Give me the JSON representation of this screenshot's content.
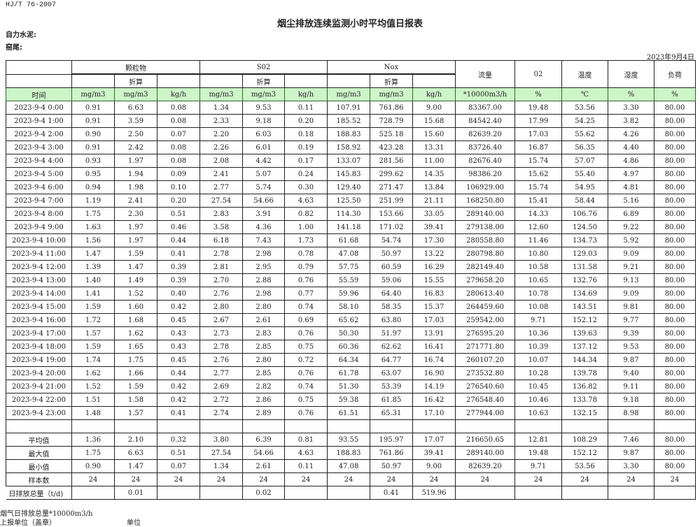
{
  "standard": "HJ/T  76-2007",
  "title": "烟尘排放连续监测小时平均值日报表",
  "company_label": "自力水泥:",
  "kiln_label": "窑尾:",
  "report_date": "2023年9月4日",
  "header": {
    "groups": [
      "颗粒物",
      "S02",
      "Nox"
    ],
    "converted_label": "折算",
    "single_columns": [
      "流量",
      "02",
      "温度",
      "湿度",
      "负荷"
    ],
    "units": [
      "时间",
      "mg/m3",
      "mg/m3",
      "kg/h",
      "mg/m3",
      "mg/m3",
      "kg/h",
      "mg/m3",
      "mg/m3",
      "kg/h",
      "*10000m3/h",
      "%",
      "℃",
      "%",
      "%"
    ]
  },
  "rows": [
    [
      "2023-9-4 0:00",
      "0.91",
      "6.63",
      "0.08",
      "1.34",
      "9.53",
      "0.11",
      "107.91",
      "761.86",
      "9.00",
      "83367.00",
      "19.48",
      "53.56",
      "3.30",
      "80.00"
    ],
    [
      "2023-9-4 1:00",
      "0.91",
      "3.59",
      "0.08",
      "2.33",
      "9.18",
      "0.20",
      "185.52",
      "728.79",
      "15.68",
      "84542.40",
      "17.99",
      "54.25",
      "3.82",
      "80.00"
    ],
    [
      "2023-9-4 2:00",
      "0.90",
      "2.50",
      "0.07",
      "2.20",
      "6.03",
      "0.18",
      "188.83",
      "525.18",
      "15.60",
      "82639.20",
      "17.03",
      "55.62",
      "4.26",
      "80.00"
    ],
    [
      "2023-9-4 3:00",
      "0.91",
      "2.42",
      "0.08",
      "2.26",
      "6.01",
      "0.19",
      "158.92",
      "423.28",
      "13.31",
      "83726.40",
      "16.87",
      "56.35",
      "4.40",
      "80.00"
    ],
    [
      "2023-9-4 4:00",
      "0.93",
      "1.97",
      "0.08",
      "2.08",
      "4.42",
      "0.17",
      "133.07",
      "281.56",
      "11.00",
      "82676.40",
      "15.74",
      "57.07",
      "4.86",
      "80.00"
    ],
    [
      "2023-9-4 5:00",
      "0.95",
      "1.94",
      "0.09",
      "2.41",
      "5.07",
      "0.24",
      "145.83",
      "299.62",
      "14.35",
      "98386.20",
      "15.62",
      "55.40",
      "4.97",
      "80.00"
    ],
    [
      "2023-9-4 6:00",
      "0.94",
      "1.98",
      "0.10",
      "2.77",
      "5.74",
      "0.30",
      "129.40",
      "271.47",
      "13.84",
      "106929.00",
      "15.74",
      "54.95",
      "4.81",
      "80.00"
    ],
    [
      "2023-9-4 7:00",
      "1.19",
      "2.41",
      "0.20",
      "27.54",
      "54.66",
      "4.63",
      "125.50",
      "251.99",
      "21.11",
      "168250.80",
      "15.41",
      "58.44",
      "5.16",
      "80.00"
    ],
    [
      "2023-9-4 8:00",
      "1.75",
      "2.30",
      "0.51",
      "2.83",
      "3.91",
      "0.82",
      "114.30",
      "153.66",
      "33.05",
      "289140.00",
      "14.33",
      "106.76",
      "6.89",
      "80.00"
    ],
    [
      "2023-9-4 9:00",
      "1.63",
      "1.97",
      "0.46",
      "3.58",
      "4.36",
      "1.00",
      "141.18",
      "171.02",
      "39.41",
      "279138.00",
      "12.60",
      "124.50",
      "9.22",
      "80.00"
    ],
    [
      "2023-9-4 10:00",
      "1.56",
      "1.97",
      "0.44",
      "6.18",
      "7.43",
      "1.73",
      "61.68",
      "54.74",
      "17.30",
      "280558.80",
      "11.46",
      "134.73",
      "5.92",
      "80.00"
    ],
    [
      "2023-9-4 11:00",
      "1.47",
      "1.59",
      "0.41",
      "2.78",
      "2.98",
      "0.78",
      "47.08",
      "50.97",
      "13.22",
      "280798.80",
      "10.80",
      "129.03",
      "9.09",
      "80.00"
    ],
    [
      "2023-9-4 12:00",
      "1.39",
      "1.47",
      "0.39",
      "2.81",
      "2.95",
      "0.79",
      "57.75",
      "60.59",
      "16.29",
      "282149.40",
      "10.58",
      "131.58",
      "9.21",
      "80.00"
    ],
    [
      "2023-9-4 13:00",
      "1.40",
      "1.49",
      "0.39",
      "2.70",
      "2.88",
      "0.76",
      "55.59",
      "59.06",
      "15.55",
      "279658.20",
      "10.65",
      "132.76",
      "9.13",
      "80.00"
    ],
    [
      "2023-9-4 14:00",
      "1.41",
      "1.52",
      "0.40",
      "2.76",
      "2.98",
      "0.77",
      "59.96",
      "64.40",
      "16.83",
      "280613.40",
      "10.78",
      "134.69",
      "9.09",
      "80.00"
    ],
    [
      "2023-9-4 15:00",
      "1.59",
      "1.60",
      "0.42",
      "2.80",
      "2.80",
      "0.74",
      "58.10",
      "58.35",
      "15.37",
      "264459.60",
      "10.08",
      "143.51",
      "9.81",
      "80.00"
    ],
    [
      "2023-9-4 16:00",
      "1.72",
      "1.68",
      "0.45",
      "2.67",
      "2.61",
      "0.69",
      "65.62",
      "63.80",
      "17.03",
      "259542.00",
      "9.71",
      "152.12",
      "9.77",
      "80.00"
    ],
    [
      "2023-9-4 17:00",
      "1.57",
      "1.62",
      "0.43",
      "2.73",
      "2.83",
      "0.76",
      "50.30",
      "51.97",
      "13.91",
      "276595.20",
      "10.36",
      "139.63",
      "9.39",
      "80.00"
    ],
    [
      "2023-9-4 18:00",
      "1.59",
      "1.65",
      "0.43",
      "2.78",
      "2.85",
      "0.75",
      "60.36",
      "62.62",
      "16.41",
      "271771.80",
      "10.39",
      "137.12",
      "9.53",
      "80.00"
    ],
    [
      "2023-9-4 19:00",
      "1.74",
      "1.75",
      "0.45",
      "2.76",
      "2.80",
      "0.72",
      "64.34",
      "64.77",
      "16.74",
      "260107.20",
      "10.07",
      "144.34",
      "9.87",
      "80.00"
    ],
    [
      "2023-9-4 20:00",
      "1.62",
      "1.66",
      "0.44",
      "2.77",
      "2.85",
      "0.76",
      "61.78",
      "63.07",
      "16.90",
      "273532.80",
      "10.28",
      "139.78",
      "9.40",
      "80.00"
    ],
    [
      "2023-9-4 21:00",
      "1.52",
      "1.59",
      "0.42",
      "2.69",
      "2.82",
      "0.74",
      "51.30",
      "53.39",
      "14.19",
      "276540.60",
      "10.45",
      "136.82",
      "9.11",
      "80.00"
    ],
    [
      "2023-9-4 22:00",
      "1.51",
      "1.58",
      "0.42",
      "2.72",
      "2.86",
      "0.75",
      "59.38",
      "61.85",
      "16.42",
      "276548.40",
      "10.46",
      "133.78",
      "9.18",
      "80.00"
    ],
    [
      "2023-9-4 23:00",
      "1.48",
      "1.57",
      "0.41",
      "2.74",
      "2.89",
      "0.76",
      "61.51",
      "65.31",
      "17.10",
      "277944.00",
      "10.63",
      "132.15",
      "8.98",
      "80.00"
    ]
  ],
  "summary": [
    [
      "平均值",
      "1.36",
      "2.10",
      "0.32",
      "3.80",
      "6.39",
      "0.81",
      "93.55",
      "195.97",
      "17.07",
      "216650.65",
      "12.81",
      "108.29",
      "7.46",
      "80.00"
    ],
    [
      "最大值",
      "1.75",
      "6.63",
      "0.51",
      "27.54",
      "54.66",
      "4.63",
      "188.83",
      "761.86",
      "39.41",
      "289140.00",
      "19.48",
      "152.12",
      "9.87",
      "80.00"
    ],
    [
      "最小值",
      "0.90",
      "1.47",
      "0.07",
      "1.34",
      "2.61",
      "0.11",
      "47.08",
      "50.97",
      "9.00",
      "82639.20",
      "9.71",
      "53.56",
      "3.30",
      "80.00"
    ],
    [
      "样本数",
      "24",
      "24",
      "24",
      "24",
      "24",
      "24",
      "24",
      "24",
      "24",
      "24",
      "24",
      "24",
      "24",
      "24"
    ]
  ],
  "daily_total": [
    "日排放总量（t/d)",
    "",
    "0.01",
    "",
    "",
    "0.02",
    "",
    "",
    "0.41",
    "519.96",
    "",
    "",
    "",
    "",
    ""
  ],
  "footer": {
    "flue_gas_total": "烟气日排放总量*10000m3/h",
    "reporting_unit": "上报单位（盖章）",
    "unit": "单位"
  }
}
